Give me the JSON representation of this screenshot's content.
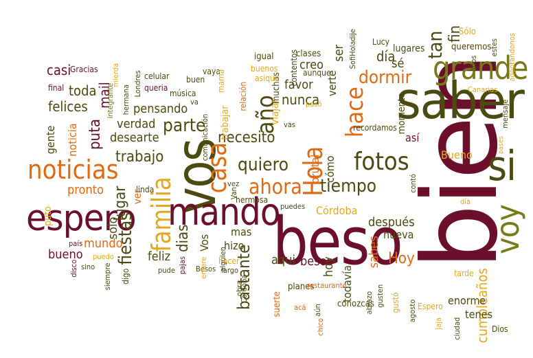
{
  "palette": {
    "maroon": "#6b0f2a",
    "dark_olive": "#4b4a10",
    "olive": "#767a1a",
    "orange": "#e06a14",
    "gold": "#e3a81b",
    "rust": "#b03a0e",
    "brown": "#8a4b12"
  },
  "words": [
    {
      "text": "bien",
      "color": "maroon"
    },
    {
      "text": "beso",
      "color": "maroon"
    },
    {
      "text": "saber",
      "color": "dark_olive"
    },
    {
      "text": "vos",
      "color": "dark_olive"
    },
    {
      "text": "mando",
      "color": "maroon"
    },
    {
      "text": "espero",
      "color": "maroon"
    },
    {
      "text": "grande",
      "color": "olive"
    },
    {
      "text": "noticias",
      "color": "orange"
    },
    {
      "text": "si",
      "color": "dark_olive"
    },
    {
      "text": "voy",
      "color": "olive"
    },
    {
      "text": "familia",
      "color": "gold"
    },
    {
      "text": "casa",
      "color": "orange"
    },
    {
      "text": "Hola",
      "color": "orange"
    },
    {
      "text": "ahora",
      "color": "orange"
    },
    {
      "text": "fotos",
      "color": "dark_olive"
    },
    {
      "text": "hace",
      "color": "orange"
    },
    {
      "text": "año",
      "color": "dark_olive"
    },
    {
      "text": "parte",
      "color": "dark_olive"
    },
    {
      "text": "tiempo",
      "color": "dark_olive"
    },
    {
      "text": "dormir",
      "color": "orange"
    },
    {
      "text": "quiero",
      "color": "dark_olive"
    },
    {
      "text": "fiestas",
      "color": "dark_olive"
    },
    {
      "text": "nunca",
      "color": "dark_olive"
    },
    {
      "text": "dias",
      "color": "dark_olive"
    },
    {
      "text": "necesito",
      "color": "dark_olive"
    },
    {
      "text": "tan",
      "color": "dark_olive"
    },
    {
      "text": "día",
      "color": "dark_olive"
    },
    {
      "text": "trabajo",
      "color": "dark_olive"
    },
    {
      "text": "lugar",
      "color": "dark_olive"
    },
    {
      "text": "bastante",
      "color": "dark_olive"
    },
    {
      "text": "Hoy",
      "color": "orange"
    },
    {
      "text": "cumpleaños",
      "color": "gold"
    },
    {
      "text": "puta",
      "color": "maroon"
    },
    {
      "text": "mail",
      "color": "maroon"
    },
    {
      "text": "felices",
      "color": "dark_olive"
    },
    {
      "text": "toda",
      "color": "dark_olive"
    },
    {
      "text": "casi",
      "color": "maroon"
    },
    {
      "text": "pensando",
      "color": "dark_olive"
    },
    {
      "text": "verdad",
      "color": "dark_olive"
    },
    {
      "text": "desearte",
      "color": "dark_olive"
    },
    {
      "text": "pronto",
      "color": "orange"
    },
    {
      "text": "mundo",
      "color": "orange"
    },
    {
      "text": "bueno",
      "color": "maroon"
    },
    {
      "text": "solo",
      "color": "dark_olive"
    },
    {
      "text": "feliz",
      "color": "dark_olive"
    },
    {
      "text": "creo",
      "color": "dark_olive"
    },
    {
      "text": "favor",
      "color": "dark_olive"
    },
    {
      "text": "sé",
      "color": "dark_olive"
    },
    {
      "text": "ser",
      "color": "dark_olive"
    },
    {
      "text": "verte",
      "color": "dark_olive"
    },
    {
      "text": "después",
      "color": "dark_olive"
    },
    {
      "text": "nueva",
      "color": "dark_olive"
    },
    {
      "text": "Córdoba",
      "color": "gold"
    },
    {
      "text": "besos",
      "color": "maroon"
    },
    {
      "text": "aqui",
      "color": "dark_olive"
    },
    {
      "text": "hoy",
      "color": "dark_olive"
    },
    {
      "text": "sabes",
      "color": "orange"
    },
    {
      "text": "todavía",
      "color": "dark_olive"
    },
    {
      "text": "enorme",
      "color": "dark_olive"
    },
    {
      "text": "tenes",
      "color": "dark_olive"
    },
    {
      "text": "Bueno",
      "color": "gold"
    },
    {
      "text": "brutal",
      "color": "orange"
    },
    {
      "text": "cómo",
      "color": "dark_olive"
    },
    {
      "text": "así",
      "color": "maroon"
    },
    {
      "text": "momento",
      "color": "dark_olive"
    },
    {
      "text": "hizo",
      "color": "dark_olive"
    },
    {
      "text": "mas",
      "color": "dark_olive"
    },
    {
      "text": "Vos",
      "color": "dark_olive"
    },
    {
      "text": "gente",
      "color": "dark_olive"
    },
    {
      "text": "noticia",
      "color": "orange"
    },
    {
      "text": "puto",
      "color": "gold"
    },
    {
      "text": "fin",
      "color": "dark_olive"
    },
    {
      "text": "lugares",
      "color": "dark_olive"
    },
    {
      "text": "queremos",
      "color": "dark_olive"
    },
    {
      "text": "Sólo",
      "color": "gold"
    },
    {
      "text": "Lucy",
      "color": "dark_olive"
    },
    {
      "text": "clases",
      "color": "dark_olive"
    },
    {
      "text": "muchas",
      "color": "dark_olive"
    },
    {
      "text": "aunque",
      "color": "dark_olive"
    },
    {
      "text": "contentos",
      "color": "dark_olive"
    },
    {
      "text": "viajar",
      "color": "gold"
    },
    {
      "text": "Gracias",
      "color": "maroon"
    },
    {
      "text": "final",
      "color": "maroon"
    },
    {
      "text": "celular",
      "color": "dark_olive"
    },
    {
      "text": "vaya",
      "color": "dark_olive"
    },
    {
      "text": "igual",
      "color": "dark_olive"
    },
    {
      "text": "buenos",
      "color": "gold"
    },
    {
      "text": "asique",
      "color": "gold"
    },
    {
      "text": "relación",
      "color": "orange"
    },
    {
      "text": "música",
      "color": "dark_olive"
    },
    {
      "text": "queria",
      "color": "maroon"
    },
    {
      "text": "buen",
      "color": "dark_olive"
    },
    {
      "text": "va",
      "color": "dark_olive"
    },
    {
      "text": "mamá",
      "color": "gold"
    },
    {
      "text": "trabajar",
      "color": "gold"
    },
    {
      "text": "comunicación",
      "color": "dark_olive"
    },
    {
      "text": "hermana",
      "color": "dark_olive"
    },
    {
      "text": "Londres",
      "color": "dark_olive"
    },
    {
      "text": "integrante",
      "color": "olive"
    },
    {
      "text": "mierda",
      "color": "gold"
    },
    {
      "text": "estes",
      "color": "dark_olive"
    },
    {
      "text": "adoptándonos",
      "color": "gold"
    },
    {
      "text": "años",
      "color": "dark_olive"
    },
    {
      "text": "Canarias",
      "color": "gold"
    },
    {
      "text": "mensaje",
      "color": "dark_olive"
    },
    {
      "text": "pases",
      "color": "gold"
    },
    {
      "text": "contó",
      "color": "dark_olive"
    },
    {
      "text": "día",
      "color": "gold"
    },
    {
      "text": "tarde",
      "color": "gold"
    },
    {
      "text": "Dios",
      "color": "dark_olive"
    },
    {
      "text": "ciudad",
      "color": "dark_olive"
    },
    {
      "text": "jaja",
      "color": "gold"
    },
    {
      "text": "agosto",
      "color": "dark_olive"
    },
    {
      "text": "Espero",
      "color": "gold"
    },
    {
      "text": "gustó",
      "color": "gold"
    },
    {
      "text": "gusten",
      "color": "dark_olive"
    },
    {
      "text": "abrazo",
      "color": "dark_olive"
    },
    {
      "text": "conozcas",
      "color": "dark_olive"
    },
    {
      "text": "aún",
      "color": "dark_olive"
    },
    {
      "text": "chico",
      "color": "orange"
    },
    {
      "text": "acá",
      "color": "orange"
    },
    {
      "text": "planes",
      "color": "dark_olive"
    },
    {
      "text": "restaurante",
      "color": "orange"
    },
    {
      "text": "suerte",
      "color": "orange"
    },
    {
      "text": "Cordoba",
      "color": "dark_olive"
    },
    {
      "text": "largo",
      "color": "dark_olive"
    },
    {
      "text": "obra",
      "color": "dark_olive"
    },
    {
      "text": "hacer",
      "color": "gold"
    },
    {
      "text": "alguien",
      "color": "dark_olive"
    },
    {
      "text": "Besos",
      "color": "dark_olive"
    },
    {
      "text": "pude",
      "color": "dark_olive"
    },
    {
      "text": "pajas",
      "color": "maroon"
    },
    {
      "text": "entere",
      "color": "gold"
    },
    {
      "text": "digo",
      "color": "dark_olive"
    },
    {
      "text": "siempre",
      "color": "dark_olive"
    },
    {
      "text": "puedo",
      "color": "gold"
    },
    {
      "text": "sino",
      "color": "dark_olive"
    },
    {
      "text": "disco",
      "color": "maroon"
    },
    {
      "text": "país",
      "color": "maroon"
    },
    {
      "text": "ver",
      "color": "orange"
    },
    {
      "text": "linda",
      "color": "dark_olive"
    },
    {
      "text": "vez",
      "color": "dark_olive"
    },
    {
      "text": "hermosa",
      "color": "dark_olive"
    },
    {
      "text": "Van",
      "color": "dark_olive"
    },
    {
      "text": "puedes",
      "color": "dark_olive"
    },
    {
      "text": "pasó",
      "color": "gold"
    },
    {
      "text": "vas",
      "color": "dark_olive"
    },
    {
      "text": "recordamos",
      "color": "dark_olive"
    },
    {
      "text": "SofiHola",
      "color": "dark_olive"
    },
    {
      "text": "dije",
      "color": "dark_olive"
    }
  ]
}
